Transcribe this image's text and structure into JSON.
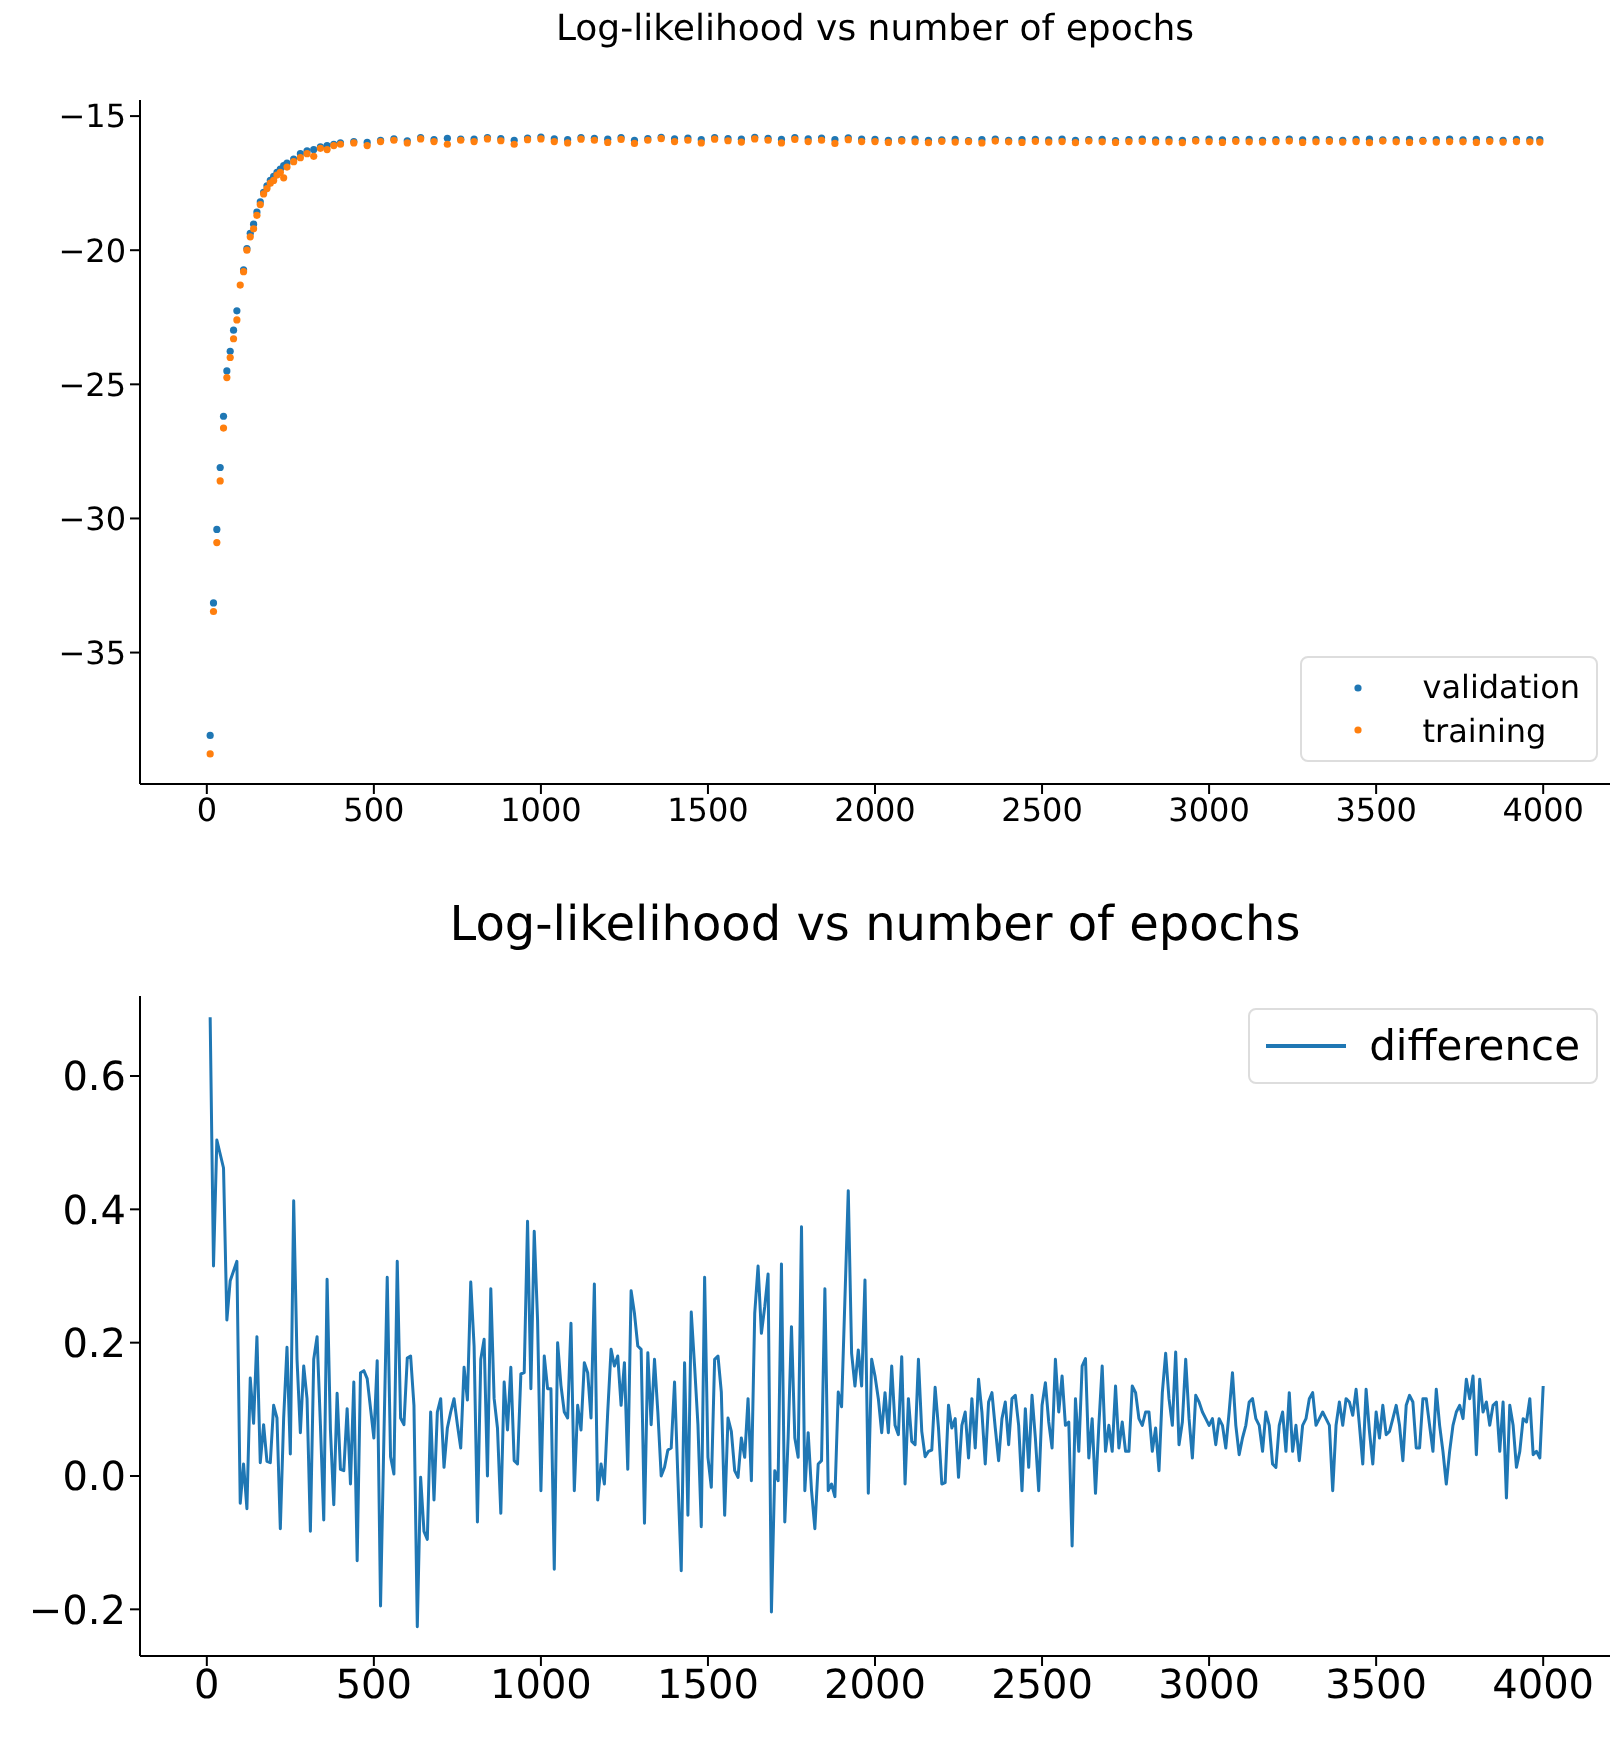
{
  "chart_data": [
    {
      "type": "scatter",
      "title": "Log-likelihood vs number of epochs",
      "legend": "bottom right",
      "marker": "circle",
      "xlim": [
        -200,
        4200
      ],
      "xticks": [
        0,
        500,
        1000,
        1500,
        2000,
        2500,
        3000,
        3500,
        4000
      ],
      "ylim": [
        -39.9,
        -14.4
      ],
      "yticks": [
        {
          "value": -35,
          "label": "−35"
        },
        {
          "value": -30,
          "label": "−30"
        },
        {
          "value": -25,
          "label": "−25"
        },
        {
          "value": -20,
          "label": "−20"
        },
        {
          "value": -15,
          "label": "−15"
        }
      ],
      "x": [
        10,
        20,
        30,
        40,
        50,
        60,
        70,
        80,
        90,
        100,
        110,
        120,
        130,
        140,
        150,
        160,
        170,
        180,
        190,
        200,
        210,
        220,
        230,
        240,
        260,
        280,
        300,
        320,
        340,
        360,
        380,
        400,
        440,
        480,
        520,
        560,
        600,
        640,
        680,
        720,
        760,
        800,
        840,
        880,
        920,
        960,
        1000,
        1040,
        1080,
        1120,
        1160,
        1200,
        1240,
        1280,
        1320,
        1360,
        1400,
        1440,
        1480,
        1520,
        1560,
        1600,
        1640,
        1680,
        1720,
        1760,
        1800,
        1840,
        1880,
        1920,
        1960,
        2000,
        2040,
        2080,
        2120,
        2160,
        2200,
        2240,
        2280,
        2320,
        2360,
        2400,
        2440,
        2480,
        2520,
        2560,
        2600,
        2640,
        2680,
        2720,
        2760,
        2800,
        2840,
        2880,
        2920,
        2960,
        3000,
        3040,
        3080,
        3120,
        3160,
        3200,
        3240,
        3280,
        3320,
        3360,
        3400,
        3440,
        3480,
        3520,
        3560,
        3600,
        3640,
        3680,
        3720,
        3760,
        3800,
        3840,
        3880,
        3920,
        3960,
        3990
      ],
      "series": [
        {
          "name": "validation",
          "color": "#1f77b4",
          "values": [
            -38.09,
            -33.15,
            -30.41,
            -28.1,
            -26.19,
            -24.5,
            -23.77,
            -22.98,
            -22.26,
            null,
            -20.73,
            -19.94,
            -19.37,
            -19.03,
            -18.58,
            -18.2,
            -17.84,
            -17.6,
            -17.4,
            -17.25,
            -17.1,
            -16.98,
            -16.85,
            -16.75,
            -16.6,
            -16.4,
            -16.3,
            -16.25,
            -16.15,
            -16.1,
            -16.05,
            -16.0,
            -15.95,
            -15.98,
            -15.9,
            -15.85,
            -15.92,
            -15.8,
            -15.88,
            -15.83,
            -15.86,
            -15.86,
            -15.8,
            -15.84,
            -15.9,
            -15.82,
            -15.78,
            -15.85,
            -15.88,
            -15.8,
            -15.83,
            -15.86,
            -15.8,
            -15.9,
            -15.84,
            -15.79,
            -15.85,
            -15.82,
            -15.88,
            -15.8,
            -15.84,
            -15.86,
            -15.79,
            -15.83,
            -15.87,
            -15.8,
            -15.85,
            -15.82,
            -15.88,
            -15.81,
            -15.86,
            -15.87,
            -15.9,
            -15.88,
            -15.86,
            -15.9,
            -15.89,
            -15.87,
            -15.91,
            -15.88,
            -15.86,
            -15.9,
            -15.88,
            -15.87,
            -15.89,
            -15.86,
            -15.9,
            -15.88,
            -15.87,
            -15.91,
            -15.88,
            -15.86,
            -15.89,
            -15.87,
            -15.9,
            -15.88,
            -15.86,
            -15.89,
            -15.88,
            -15.87,
            -15.9,
            -15.88,
            -15.86,
            -15.89,
            -15.87,
            -15.88,
            -15.9,
            -15.87,
            -15.86,
            -15.89,
            -15.88,
            -15.87,
            -15.9,
            -15.88,
            -15.86,
            -15.89,
            -15.87,
            -15.88,
            -15.9,
            -15.87,
            -15.88,
            -15.88
          ]
        },
        {
          "name": "training",
          "color": "#ff7f0e",
          "values": [
            -38.78,
            -33.47,
            -30.9,
            -28.6,
            -26.63,
            -24.75,
            -24.0,
            -23.3,
            -22.6,
            -21.3,
            -20.8,
            -20.0,
            -19.5,
            -19.2,
            -18.7,
            -18.3,
            -17.9,
            -17.7,
            -17.5,
            -17.4,
            -17.2,
            -17.1,
            -17.3,
            -16.9,
            -16.7,
            -16.55,
            -16.4,
            -16.5,
            -16.2,
            -16.25,
            -16.1,
            -16.05,
            -16.0,
            -16.1,
            -15.95,
            -15.9,
            -16.0,
            -15.85,
            -15.95,
            -16.05,
            -15.9,
            -15.95,
            -15.85,
            -15.92,
            -16.05,
            -15.88,
            -15.85,
            -15.95,
            -16.0,
            -15.86,
            -15.9,
            -15.98,
            -15.87,
            -16.02,
            -15.9,
            -15.84,
            -15.95,
            -15.9,
            -16.0,
            -15.86,
            -15.92,
            -15.97,
            -15.85,
            -15.9,
            -16.0,
            -15.87,
            -15.95,
            -15.9,
            -16.02,
            -15.88,
            -15.95,
            -15.95,
            -15.98,
            -15.93,
            -15.96,
            -15.99,
            -15.94,
            -15.97,
            -15.95,
            -16.0,
            -15.93,
            -15.96,
            -15.98,
            -15.94,
            -15.97,
            -15.95,
            -15.99,
            -15.93,
            -15.96,
            -15.98,
            -15.95,
            -15.94,
            -15.97,
            -15.96,
            -15.99,
            -15.93,
            -15.95,
            -15.98,
            -15.94,
            -15.96,
            -15.97,
            -15.95,
            -15.93,
            -15.98,
            -15.96,
            -15.94,
            -15.97,
            -15.95,
            -15.99,
            -15.93,
            -15.96,
            -15.98,
            -15.94,
            -15.97,
            -15.95,
            -15.96,
            -15.98,
            -15.94,
            -15.97,
            -15.95,
            -15.96,
            -15.97
          ]
        }
      ]
    },
    {
      "type": "line",
      "title": "Log-likelihood vs number of epochs",
      "legend": "top right",
      "xlim": [
        -200,
        4200
      ],
      "xticks": [
        0,
        500,
        1000,
        1500,
        2000,
        2500,
        3000,
        3500,
        4000
      ],
      "ylim": [
        -0.27,
        0.72
      ],
      "yticks": [
        {
          "value": -0.2,
          "label": "−0.2"
        },
        {
          "value": 0,
          "label": "0.0"
        },
        0.2,
        0.4,
        0.6
      ],
      "series": [
        {
          "name": "difference",
          "color": "#1f77b4",
          "x": [
            10,
            20,
            30,
            50,
            60,
            70,
            90,
            100,
            110,
            120,
            130,
            140,
            150,
            160,
            170,
            180,
            190,
            200,
            210,
            220,
            230,
            240,
            250,
            260,
            270,
            280,
            290,
            300,
            310,
            320,
            330,
            340,
            350,
            360,
            370,
            380,
            390,
            400,
            410,
            420,
            430,
            440,
            450,
            460,
            470,
            480,
            500,
            510,
            520,
            530,
            540,
            550,
            560,
            570,
            580,
            590,
            600,
            610,
            620,
            630,
            640,
            650,
            660,
            670,
            680,
            690,
            700,
            710,
            720,
            730,
            740,
            750,
            760,
            770,
            780,
            790,
            800,
            810,
            820,
            830,
            840,
            850,
            860,
            870,
            880,
            890,
            900,
            910,
            920,
            930,
            940,
            950,
            960,
            970,
            980,
            990,
            1000,
            1010,
            1020,
            1030,
            1040,
            1050,
            1060,
            1070,
            1080,
            1090,
            1100,
            1110,
            1120,
            1130,
            1140,
            1150,
            1160,
            1170,
            1180,
            1190,
            1200,
            1210,
            1220,
            1230,
            1240,
            1250,
            1260,
            1270,
            1280,
            1290,
            1300,
            1310,
            1320,
            1330,
            1340,
            1350,
            1360,
            1370,
            1380,
            1390,
            1400,
            1410,
            1420,
            1430,
            1440,
            1450,
            1460,
            1470,
            1480,
            1490,
            1500,
            1510,
            1520,
            1530,
            1540,
            1550,
            1560,
            1570,
            1580,
            1590,
            1600,
            1610,
            1620,
            1630,
            1640,
            1650,
            1660,
            1670,
            1680,
            1690,
            1700,
            1710,
            1720,
            1730,
            1740,
            1750,
            1760,
            1770,
            1780,
            1790,
            1800,
            1810,
            1820,
            1830,
            1840,
            1850,
            1860,
            1870,
            1880,
            1890,
            1900,
            1920,
            1930,
            1940,
            1950,
            1960,
            1970,
            1980,
            1990,
            2000,
            2010,
            2020,
            2030,
            2040,
            2050,
            2060,
            2070,
            2080,
            2090,
            2100,
            2110,
            2120,
            2130,
            2140,
            2150,
            2160,
            2170,
            2180,
            2190,
            2200,
            2210,
            2220,
            2230,
            2240,
            2250,
            2260,
            2270,
            2280,
            2290,
            2300,
            2310,
            2320,
            2330,
            2340,
            2350,
            2360,
            2370,
            2380,
            2390,
            2400,
            2410,
            2420,
            2430,
            2440,
            2450,
            2460,
            2470,
            2480,
            2490,
            2500,
            2510,
            2520,
            2530,
            2540,
            2550,
            2560,
            2570,
            2580,
            2590,
            2600,
            2610,
            2620,
            2630,
            2640,
            2650,
            2660,
            2670,
            2680,
            2690,
            2700,
            2710,
            2720,
            2730,
            2740,
            2750,
            2760,
            2770,
            2780,
            2790,
            2800,
            2810,
            2820,
            2830,
            2840,
            2850,
            2860,
            2870,
            2880,
            2890,
            2900,
            2910,
            2920,
            2930,
            2940,
            2950,
            2960,
            2970,
            2980,
            2990,
            3000,
            3010,
            3020,
            3030,
            3040,
            3050,
            3060,
            3070,
            3080,
            3090,
            3100,
            3110,
            3120,
            3130,
            3140,
            3150,
            3160,
            3170,
            3180,
            3190,
            3200,
            3210,
            3220,
            3230,
            3240,
            3250,
            3260,
            3270,
            3280,
            3290,
            3300,
            3310,
            3320,
            3330,
            3340,
            3350,
            3360,
            3370,
            3380,
            3390,
            3400,
            3410,
            3420,
            3430,
            3440,
            3450,
            3460,
            3470,
            3480,
            3490,
            3500,
            3510,
            3520,
            3530,
            3540,
            3550,
            3560,
            3570,
            3580,
            3590,
            3600,
            3610,
            3620,
            3630,
            3640,
            3650,
            3660,
            3670,
            3680,
            3690,
            3700,
            3710,
            3720,
            3730,
            3740,
            3750,
            3760,
            3770,
            3780,
            3790,
            3800,
            3810,
            3820,
            3830,
            3840,
            3850,
            3860,
            3870,
            3880,
            3890,
            3900,
            3910,
            3920,
            3930,
            3940,
            3950,
            3960,
            3970,
            3980,
            3990,
            4000
          ],
          "values": [
            0.688,
            0.315,
            0.504,
            0.462,
            0.234,
            0.293,
            0.322,
            -0.041,
            0.018,
            -0.049,
            0.147,
            0.079,
            0.209,
            0.02,
            0.077,
            0.022,
            0.02,
            0.106,
            0.087,
            -0.079,
            0.087,
            0.193,
            0.033,
            0.413,
            0.175,
            0.065,
            0.165,
            0.116,
            -0.083,
            0.175,
            0.209,
            0.077,
            -0.066,
            0.295,
            0.069,
            -0.043,
            0.124,
            0.01,
            0.008,
            0.101,
            -0.012,
            0.141,
            -0.127,
            0.155,
            0.158,
            0.146,
            0.057,
            0.173,
            -0.195,
            0.057,
            0.298,
            0.029,
            0.003,
            0.322,
            0.087,
            0.077,
            0.177,
            0.18,
            0.106,
            -0.226,
            -0.002,
            -0.083,
            -0.095,
            0.096,
            -0.036,
            0.096,
            0.116,
            0.013,
            0.072,
            0.096,
            0.116,
            0.077,
            0.042,
            0.163,
            0.114,
            0.291,
            0.195,
            -0.069,
            0.175,
            0.205,
            0.0,
            0.281,
            0.116,
            0.072,
            -0.056,
            0.141,
            0.069,
            0.163,
            0.023,
            0.018,
            0.153,
            0.155,
            0.382,
            0.131,
            0.367,
            0.234,
            -0.022,
            0.18,
            0.131,
            0.131,
            -0.14,
            0.2,
            0.136,
            0.096,
            0.087,
            0.229,
            -0.022,
            0.106,
            0.069,
            0.17,
            0.155,
            0.087,
            0.288,
            -0.036,
            0.018,
            -0.012,
            0.096,
            0.19,
            0.165,
            0.18,
            0.106,
            0.17,
            0.01,
            0.278,
            0.244,
            0.195,
            0.19,
            -0.071,
            0.185,
            0.077,
            0.175,
            0.096,
            0.0,
            0.013,
            0.039,
            0.042,
            0.141,
            -0.002,
            -0.142,
            0.17,
            -0.059,
            0.246,
            0.165,
            0.077,
            -0.076,
            0.298,
            0.028,
            -0.017,
            0.175,
            0.18,
            0.126,
            -0.059,
            0.087,
            0.067,
            0.008,
            -0.002,
            0.057,
            0.028,
            0.116,
            -0.007,
            0.244,
            0.315,
            0.214,
            0.254,
            0.303,
            -0.204,
            0.008,
            -0.007,
            0.318,
            -0.069,
            0.057,
            0.224,
            0.057,
            0.028,
            0.374,
            -0.022,
            0.065,
            -0.022,
            -0.079,
            0.018,
            0.023,
            0.281,
            -0.022,
            -0.012,
            -0.031,
            0.126,
            0.104,
            0.428,
            0.184,
            0.135,
            0.189,
            0.135,
            0.294,
            -0.026,
            0.175,
            0.15,
            0.116,
            0.065,
            0.125,
            0.065,
            0.165,
            0.076,
            0.062,
            0.179,
            -0.012,
            0.116,
            0.052,
            0.047,
            0.175,
            0.067,
            0.029,
            0.037,
            0.039,
            0.133,
            0.072,
            -0.012,
            -0.01,
            0.106,
            0.072,
            0.086,
            -0.002,
            0.076,
            0.096,
            0.027,
            0.116,
            0.042,
            0.145,
            0.096,
            0.018,
            0.111,
            0.125,
            0.072,
            0.023,
            0.086,
            0.111,
            0.047,
            0.116,
            0.121,
            0.076,
            -0.022,
            0.101,
            0.013,
            0.121,
            0.057,
            -0.022,
            0.106,
            0.14,
            0.081,
            0.042,
            0.175,
            0.096,
            0.15,
            0.076,
            0.081,
            -0.105,
            0.116,
            0.037,
            0.165,
            0.176,
            0.027,
            0.086,
            -0.026,
            0.076,
            0.165,
            0.037,
            0.076,
            0.037,
            0.135,
            0.042,
            0.081,
            0.037,
            0.037,
            0.135,
            0.125,
            0.086,
            0.076,
            0.096,
            0.096,
            0.037,
            0.072,
            0.008,
            0.125,
            0.184,
            0.116,
            0.076,
            0.186,
            0.047,
            0.081,
            0.175,
            0.086,
            0.027,
            0.121,
            0.111,
            0.096,
            0.086,
            0.076,
            0.086,
            0.047,
            0.086,
            0.076,
            0.042,
            0.096,
            0.155,
            0.076,
            0.032,
            0.057,
            0.076,
            0.111,
            0.116,
            0.086,
            0.076,
            0.037,
            0.096,
            0.076,
            0.018,
            0.013,
            0.076,
            0.096,
            0.037,
            0.125,
            0.037,
            0.076,
            0.023,
            0.076,
            0.086,
            0.116,
            0.125,
            0.076,
            0.086,
            0.096,
            0.086,
            0.076,
            -0.022,
            0.076,
            0.111,
            0.076,
            0.116,
            0.111,
            0.091,
            0.13,
            0.076,
            0.018,
            0.13,
            0.067,
            0.018,
            0.096,
            0.057,
            0.106,
            0.062,
            0.067,
            0.086,
            0.106,
            0.076,
            0.023,
            0.106,
            0.121,
            0.111,
            0.042,
            0.042,
            0.116,
            0.116,
            0.076,
            0.037,
            0.13,
            0.076,
            0.037,
            -0.012,
            0.037,
            0.076,
            0.096,
            0.106,
            0.086,
            0.145,
            0.116,
            0.15,
            0.032,
            0.145,
            0.096,
            0.111,
            0.076,
            0.106,
            0.111,
            0.037,
            0.111,
            -0.033,
            0.106,
            0.076,
            0.013,
            0.037,
            0.086,
            0.081,
            0.116,
            0.032,
            0.037,
            0.027,
            0.135
          ]
        }
      ]
    }
  ]
}
